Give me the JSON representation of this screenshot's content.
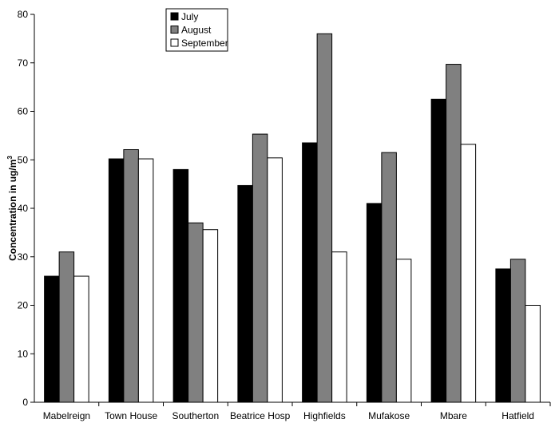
{
  "chart_data": {
    "type": "bar",
    "categories": [
      "Mabelreign",
      "Town House",
      "Southerton",
      "Beatrice Hosp",
      "Highfields",
      "Mufakose",
      "Mbare",
      "Hatfield"
    ],
    "series": [
      {
        "name": "July",
        "color": "#000000",
        "values": [
          26,
          50.2,
          48,
          44.7,
          53.5,
          41,
          62.5,
          27.5
        ]
      },
      {
        "name": "August",
        "color": "#808080",
        "values": [
          31,
          52.1,
          37,
          55.3,
          76,
          51.5,
          69.7,
          29.5
        ]
      },
      {
        "name": "September",
        "color": "#ffffff",
        "values": [
          26,
          50.2,
          35.6,
          50.4,
          31,
          29.5,
          53.2,
          20
        ]
      }
    ],
    "title": "",
    "xlabel": "",
    "ylabel": "Concentration in ug/m",
    "ylabel_superscript": "3",
    "ylim": [
      0,
      80
    ],
    "yticks": [
      0,
      10,
      20,
      30,
      40,
      50,
      60,
      70,
      80
    ],
    "grid": false,
    "legend_position": "top-center"
  }
}
